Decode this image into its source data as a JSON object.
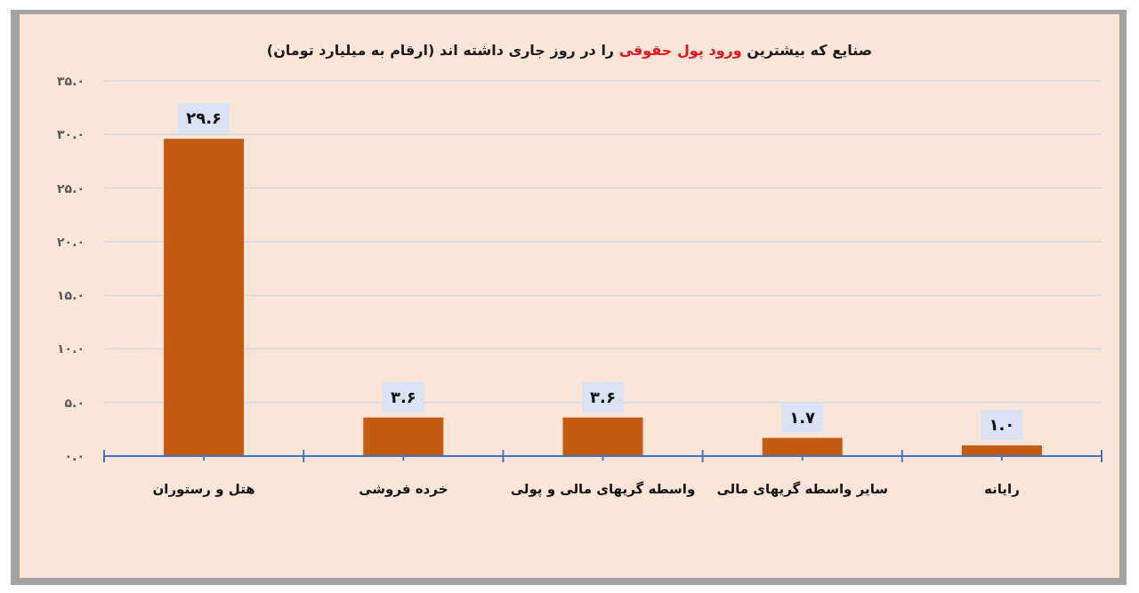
{
  "chart_data": {
    "type": "bar",
    "title": "صنایع که بیشترین **ورود پول حقوقی** را در روز جاری داشته اند (ارقام به میلیارد تومان)",
    "categories": [
      "هتل و رستوران",
      "خرده فروشی",
      "واسطه گریهای مالی و پولی",
      "سایر واسطه گریهای مالی",
      "رایانه"
    ],
    "values": [
      29.6,
      3.6,
      3.6,
      1.7,
      1.0
    ],
    "value_labels": [
      "۲۹.۶",
      "۳.۶",
      "۳.۶",
      "۱.۷",
      "۱.۰"
    ],
    "color": "#c55a11",
    "ylim": [
      0,
      35
    ],
    "yticks": [
      {
        "value": 0,
        "label": "۰.۰"
      },
      {
        "value": 5,
        "label": "۵.۰"
      },
      {
        "value": 10,
        "label": "۱۰.۰"
      },
      {
        "value": 15,
        "label": "۱۵.۰"
      },
      {
        "value": 20,
        "label": "۲۰.۰"
      },
      {
        "value": 25,
        "label": "۲۵.۰"
      },
      {
        "value": 30,
        "label": "۳۰.۰"
      },
      {
        "value": 35,
        "label": "۳۵.۰"
      }
    ],
    "grid": "y"
  }
}
